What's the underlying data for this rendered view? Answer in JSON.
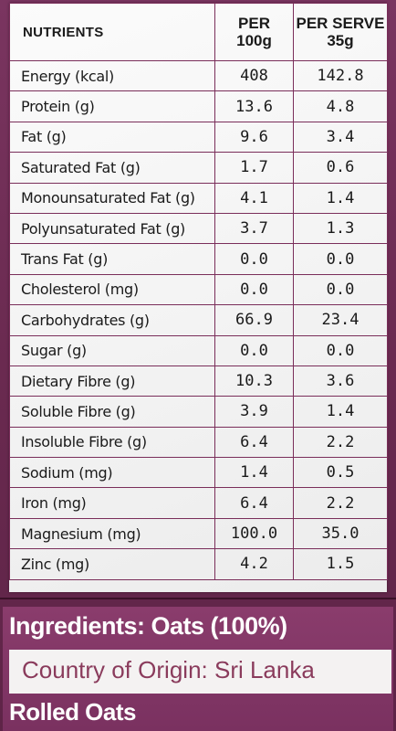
{
  "nutrition": {
    "headers": [
      "NUTRIENTS",
      "PER\n100g",
      "PER SERVE\n35g"
    ],
    "header_nutrients": "NUTRIENTS",
    "header_per100_line1": "PER",
    "header_per100_line2": "100g",
    "header_serve_line1": "PER SERVE",
    "header_serve_line2": "35g",
    "rows": [
      {
        "name": "Energy (kcal)",
        "per100": "408",
        "serve": "142.8"
      },
      {
        "name": "Protein (g)",
        "per100": "13.6",
        "serve": "4.8"
      },
      {
        "name": "Fat (g)",
        "per100": "9.6",
        "serve": "3.4"
      },
      {
        "name": "Saturated Fat (g)",
        "per100": "1.7",
        "serve": "0.6"
      },
      {
        "name": "Monounsaturated Fat (g)",
        "per100": "4.1",
        "serve": "1.4"
      },
      {
        "name": "Polyunsaturated Fat (g)",
        "per100": "3.7",
        "serve": "1.3"
      },
      {
        "name": "Trans Fat (g)",
        "per100": "0.0",
        "serve": "0.0"
      },
      {
        "name": "Cholesterol (mg)",
        "per100": "0.0",
        "serve": "0.0"
      },
      {
        "name": "Carbohydrates (g)",
        "per100": "66.9",
        "serve": "23.4"
      },
      {
        "name": "Sugar (g)",
        "per100": "0.0",
        "serve": "0.0"
      },
      {
        "name": "Dietary Fibre (g)",
        "per100": "10.3",
        "serve": "3.6"
      },
      {
        "name": "Soluble Fibre (g)",
        "per100": "3.9",
        "serve": "1.4"
      },
      {
        "name": "Insoluble Fibre (g)",
        "per100": "6.4",
        "serve": "2.2"
      },
      {
        "name": "Sodium (mg)",
        "per100": "1.4",
        "serve": "0.5"
      },
      {
        "name": "Iron (mg)",
        "per100": "6.4",
        "serve": "2.2"
      },
      {
        "name": "Magnesium (mg)",
        "per100": "100.0",
        "serve": "35.0"
      },
      {
        "name": "Zinc (mg)",
        "per100": "4.2",
        "serve": "1.5"
      }
    ]
  },
  "ingredients": {
    "title": "Ingredients: Oats (100%)",
    "origin": "Country of Origin: Sri Lanka",
    "product": "Rolled Oats"
  },
  "colors": {
    "border": "#7a2e5a",
    "package_purple": "#7a3160",
    "origin_text": "#8a3b5c"
  }
}
